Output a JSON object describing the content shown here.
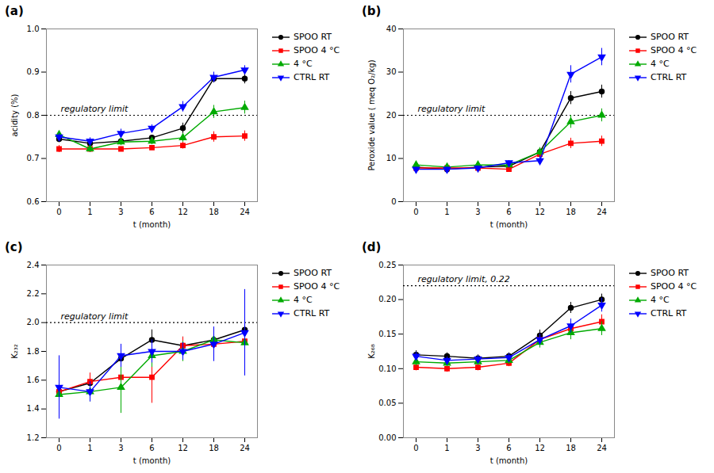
{
  "chart_data": [
    {
      "type": "line",
      "title": "(a)",
      "xlabel": "t (month)",
      "ylabel": "acidity (%)",
      "categories": [
        "0",
        "1",
        "3",
        "6",
        "12",
        "18",
        "24"
      ],
      "ylim": [
        0.6,
        1.0
      ],
      "yticks": [
        0.6,
        0.7,
        0.8,
        0.9,
        {
          "value": 1.0,
          "label": "1.0"
        }
      ],
      "grid": false,
      "legend": "right",
      "annotations": [
        {
          "y": 0.8,
          "text": "regulatory limit",
          "line_style": "dotted"
        }
      ],
      "series": [
        {
          "name": "SPOO RT",
          "color": "#000000",
          "marker": "circle",
          "values": [
            0.745,
            0.735,
            0.74,
            0.748,
            0.77,
            0.885,
            0.885
          ],
          "errors": [
            0.008,
            0.006,
            0.007,
            0.006,
            0.012,
            0.01,
            0.012
          ]
        },
        {
          "name": "SPOO 4 °C",
          "color": "#ff0000",
          "marker": "square",
          "values": [
            0.722,
            0.722,
            0.722,
            0.725,
            0.73,
            0.75,
            0.752
          ],
          "errors": [
            0.008,
            0.005,
            0.005,
            0.005,
            0.008,
            0.012,
            0.012
          ]
        },
        {
          "name": "4 °C",
          "color": "#00aa00",
          "marker": "triangle-up",
          "values": [
            0.755,
            0.722,
            0.738,
            0.74,
            0.748,
            0.808,
            0.818
          ],
          "errors": [
            0.008,
            0.008,
            0.008,
            0.008,
            0.01,
            0.015,
            0.015
          ]
        },
        {
          "name": "CTRL RT",
          "color": "#0000ff",
          "marker": "triangle-down",
          "values": [
            0.75,
            0.74,
            0.758,
            0.77,
            0.82,
            0.888,
            0.905
          ],
          "errors": [
            0.008,
            0.008,
            0.01,
            0.008,
            0.012,
            0.012,
            0.01
          ]
        }
      ]
    },
    {
      "type": "line",
      "title": "(b)",
      "xlabel": "t (month)",
      "ylabel": "Peroxide value ( meq O₂/kg)",
      "categories": [
        "0",
        "1",
        "3",
        "6",
        "12",
        "18",
        "24"
      ],
      "ylim": [
        0,
        40
      ],
      "yticks": [
        0,
        10,
        20,
        30,
        40
      ],
      "grid": false,
      "legend": "right",
      "annotations": [
        {
          "y": 20,
          "text": "regulatory limit",
          "line_style": "dotted"
        }
      ],
      "series": [
        {
          "name": "SPOO RT",
          "color": "#000000",
          "marker": "circle",
          "values": [
            8.0,
            7.5,
            8.0,
            8.2,
            11.5,
            24.0,
            25.5
          ],
          "errors": [
            0.5,
            0.5,
            0.5,
            0.5,
            1.0,
            1.5,
            1.5
          ]
        },
        {
          "name": "SPOO 4 °C",
          "color": "#ff0000",
          "marker": "square",
          "values": [
            7.8,
            7.8,
            7.8,
            7.5,
            11.0,
            13.5,
            14.0
          ],
          "errors": [
            0.5,
            0.5,
            0.5,
            0.5,
            1.0,
            1.2,
            1.2
          ]
        },
        {
          "name": "4 °C",
          "color": "#00aa00",
          "marker": "triangle-up",
          "values": [
            8.5,
            8.0,
            8.5,
            8.5,
            11.5,
            18.5,
            20.0
          ],
          "errors": [
            0.5,
            0.5,
            0.5,
            0.5,
            1.0,
            1.5,
            1.5
          ]
        },
        {
          "name": "CTRL RT",
          "color": "#0000ff",
          "marker": "triangle-down",
          "values": [
            7.5,
            7.5,
            7.8,
            9.0,
            9.5,
            29.5,
            33.5
          ],
          "errors": [
            0.5,
            0.5,
            0.5,
            0.5,
            1.0,
            2.0,
            2.0
          ]
        }
      ]
    },
    {
      "type": "line",
      "title": "(c)",
      "xlabel": "t (month)",
      "ylabel": "K₂₃₂",
      "categories": [
        "0",
        "1",
        "3",
        "6",
        "12",
        "18",
        "24"
      ],
      "ylim": [
        1.2,
        2.4
      ],
      "yticks": [
        1.2,
        1.4,
        1.6,
        1.8,
        {
          "value": 2.0,
          "label": "2.0"
        },
        2.2,
        2.4
      ],
      "grid": false,
      "legend": "right",
      "annotations": [
        {
          "y": 2.0,
          "text": "regulatory limit",
          "line_style": "dotted"
        }
      ],
      "series": [
        {
          "name": "SPOO RT",
          "color": "#000000",
          "marker": "circle",
          "values": [
            1.52,
            1.58,
            1.75,
            1.88,
            1.84,
            1.88,
            1.95
          ],
          "errors": [
            0.08,
            0.06,
            0.07,
            0.07,
            0.06,
            0.06,
            0.06
          ]
        },
        {
          "name": "SPOO 4 °C",
          "color": "#ff0000",
          "marker": "square",
          "values": [
            1.52,
            1.59,
            1.62,
            1.62,
            1.84,
            1.85,
            1.87
          ],
          "errors": [
            0.1,
            0.06,
            0.08,
            0.18,
            0.06,
            0.07,
            0.08
          ]
        },
        {
          "name": "4 °C",
          "color": "#00aa00",
          "marker": "triangle-up",
          "values": [
            1.5,
            1.52,
            1.55,
            1.77,
            1.8,
            1.88,
            1.86
          ],
          "errors": [
            0.08,
            0.07,
            0.18,
            0.08,
            0.07,
            0.08,
            0.08
          ]
        },
        {
          "name": "CTRL RT",
          "color": "#0000ff",
          "marker": "triangle-down",
          "values": [
            1.55,
            1.52,
            1.77,
            1.8,
            1.8,
            1.85,
            1.93
          ],
          "errors": [
            0.22,
            0.07,
            0.08,
            0.08,
            0.06,
            0.12,
            0.3
          ]
        }
      ]
    },
    {
      "type": "line",
      "title": "(d)",
      "xlabel": "t (month)",
      "ylabel": "K₂₆₈",
      "categories": [
        "0",
        "1",
        "3",
        "6",
        "12",
        "18",
        "24"
      ],
      "ylim": [
        0.0,
        0.25
      ],
      "yticks": [
        {
          "value": 0.0,
          "label": "0.00"
        },
        {
          "value": 0.05,
          "label": "0.05"
        },
        {
          "value": 0.1,
          "label": "0.10"
        },
        {
          "value": 0.15,
          "label": "0.15"
        },
        {
          "value": 0.2,
          "label": "0.20"
        },
        {
          "value": 0.25,
          "label": "0.25"
        }
      ],
      "grid": false,
      "legend": "right",
      "annotations": [
        {
          "y": 0.22,
          "text": "regulatory limit, 0.22",
          "line_style": "dotted"
        }
      ],
      "series": [
        {
          "name": "SPOO RT",
          "color": "#000000",
          "marker": "circle",
          "values": [
            0.12,
            0.118,
            0.115,
            0.118,
            0.148,
            0.188,
            0.2
          ],
          "errors": [
            0.006,
            0.005,
            0.005,
            0.005,
            0.008,
            0.008,
            0.008
          ]
        },
        {
          "name": "SPOO 4 °C",
          "color": "#ff0000",
          "marker": "square",
          "values": [
            0.102,
            0.1,
            0.102,
            0.108,
            0.142,
            0.158,
            0.168
          ],
          "errors": [
            0.005,
            0.005,
            0.005,
            0.005,
            0.008,
            0.01,
            0.01
          ]
        },
        {
          "name": "4 °C",
          "color": "#00aa00",
          "marker": "triangle-up",
          "values": [
            0.11,
            0.108,
            0.11,
            0.112,
            0.138,
            0.152,
            0.158
          ],
          "errors": [
            0.006,
            0.005,
            0.005,
            0.006,
            0.008,
            0.01,
            0.01
          ]
        },
        {
          "name": "CTRL RT",
          "color": "#0000ff",
          "marker": "triangle-down",
          "values": [
            0.118,
            0.112,
            0.114,
            0.116,
            0.142,
            0.162,
            0.192
          ],
          "errors": [
            0.006,
            0.005,
            0.005,
            0.006,
            0.008,
            0.01,
            0.01
          ]
        }
      ]
    }
  ]
}
